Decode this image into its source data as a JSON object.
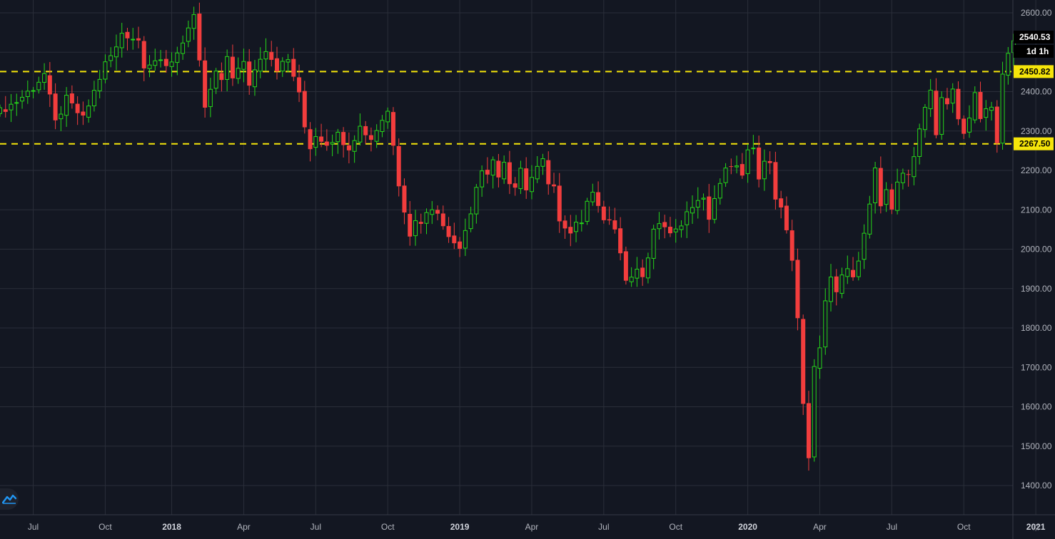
{
  "chart_data": {
    "type": "candlestick",
    "interval_label": "1d 1h",
    "last_price_label": "2540.53",
    "y_axis": {
      "range": [
        1325,
        2640
      ],
      "ticks": [
        "2600.00",
        "2500.00",
        "2400.00",
        "2300.00",
        "2200.00",
        "2100.00",
        "2000.00",
        "1900.00",
        "1800.00",
        "1700.00",
        "1600.00",
        "1500.00",
        "1400.00"
      ]
    },
    "x_axis": {
      "labels": [
        {
          "text": "Jul",
          "week": 6,
          "bold": false
        },
        {
          "text": "Oct",
          "week": 19,
          "bold": false
        },
        {
          "text": "2018",
          "week": 31,
          "bold": true
        },
        {
          "text": "Apr",
          "week": 44,
          "bold": false
        },
        {
          "text": "Jul",
          "week": 57,
          "bold": false
        },
        {
          "text": "Oct",
          "week": 70,
          "bold": false
        },
        {
          "text": "2019",
          "week": 83,
          "bold": true
        },
        {
          "text": "Apr",
          "week": 96,
          "bold": false
        },
        {
          "text": "Jul",
          "week": 109,
          "bold": false
        },
        {
          "text": "Oct",
          "week": 122,
          "bold": false
        },
        {
          "text": "2020",
          "week": 135,
          "bold": true
        },
        {
          "text": "Apr",
          "week": 148,
          "bold": false
        },
        {
          "text": "Jul",
          "week": 161,
          "bold": false
        },
        {
          "text": "Oct",
          "week": 174,
          "bold": false
        },
        {
          "text": "2021",
          "week": 187,
          "bold": true
        }
      ]
    },
    "levels": [
      {
        "value": 2450.82,
        "label": "2450.82"
      },
      {
        "value": 2267.5,
        "label": "2267.50"
      }
    ],
    "colors": {
      "up": "#26d61a",
      "down": "#f23d3d",
      "level": "#f5e50a",
      "grid": "#2a2e39",
      "axis": "#363a45"
    },
    "anchors": [
      [
        0,
        2350
      ],
      [
        3,
        2375
      ],
      [
        6,
        2410
      ],
      [
        8,
        2445
      ],
      [
        10,
        2320
      ],
      [
        12,
        2380
      ],
      [
        15,
        2330
      ],
      [
        17,
        2400
      ],
      [
        19,
        2470
      ],
      [
        21,
        2510
      ],
      [
        22,
        2550
      ],
      [
        25,
        2530
      ],
      [
        26,
        2470
      ],
      [
        28,
        2480
      ],
      [
        30,
        2460
      ],
      [
        32,
        2500
      ],
      [
        34,
        2560
      ],
      [
        35,
        2585
      ],
      [
        36,
        2470
      ],
      [
        37,
        2360
      ],
      [
        38,
        2400
      ],
      [
        39,
        2450
      ],
      [
        40,
        2420
      ],
      [
        41,
        2490
      ],
      [
        42,
        2440
      ],
      [
        44,
        2470
      ],
      [
        45,
        2420
      ],
      [
        47,
        2490
      ],
      [
        48,
        2510
      ],
      [
        50,
        2460
      ],
      [
        52,
        2480
      ],
      [
        53,
        2440
      ],
      [
        54,
        2390
      ],
      [
        55,
        2310
      ],
      [
        56,
        2260
      ],
      [
        57,
        2290
      ],
      [
        58,
        2280
      ],
      [
        59,
        2270
      ],
      [
        61,
        2290
      ],
      [
        63,
        2260
      ],
      [
        65,
        2310
      ],
      [
        67,
        2280
      ],
      [
        69,
        2330
      ],
      [
        70,
        2350
      ],
      [
        71,
        2270
      ],
      [
        72,
        2170
      ],
      [
        73,
        2100
      ],
      [
        74,
        2030
      ],
      [
        75,
        2080
      ],
      [
        76,
        2060
      ],
      [
        77,
        2100
      ],
      [
        78,
        2110
      ],
      [
        80,
        2060
      ],
      [
        82,
        2020
      ],
      [
        83,
        2010
      ],
      [
        85,
        2090
      ],
      [
        86,
        2160
      ],
      [
        87,
        2200
      ],
      [
        88,
        2180
      ],
      [
        89,
        2220
      ],
      [
        90,
        2190
      ],
      [
        91,
        2220
      ],
      [
        92,
        2160
      ],
      [
        93,
        2150
      ],
      [
        94,
        2200
      ],
      [
        95,
        2140
      ],
      [
        96,
        2190
      ],
      [
        97,
        2220
      ],
      [
        98,
        2230
      ],
      [
        99,
        2170
      ],
      [
        100,
        2150
      ],
      [
        101,
        2080
      ],
      [
        103,
        2040
      ],
      [
        104,
        2060
      ],
      [
        105,
        2070
      ],
      [
        106,
        2120
      ],
      [
        107,
        2140
      ],
      [
        108,
        2100
      ],
      [
        109,
        2080
      ],
      [
        110,
        2070
      ],
      [
        111,
        2060
      ],
      [
        112,
        2000
      ],
      [
        113,
        1920
      ],
      [
        114,
        1930
      ],
      [
        115,
        1950
      ],
      [
        116,
        1920
      ],
      [
        117,
        1980
      ],
      [
        118,
        2040
      ],
      [
        119,
        2070
      ],
      [
        120,
        2050
      ],
      [
        121,
        2030
      ],
      [
        122,
        2060
      ],
      [
        123,
        2070
      ],
      [
        124,
        2090
      ],
      [
        125,
        2110
      ],
      [
        126,
        2130
      ],
      [
        127,
        2120
      ],
      [
        128,
        2080
      ],
      [
        129,
        2130
      ],
      [
        130,
        2160
      ],
      [
        131,
        2200
      ],
      [
        132,
        2220
      ],
      [
        133,
        2210
      ],
      [
        134,
        2180
      ],
      [
        135,
        2260
      ],
      [
        136,
        2250
      ],
      [
        137,
        2170
      ],
      [
        138,
        2230
      ],
      [
        139,
        2220
      ],
      [
        140,
        2120
      ],
      [
        141,
        2100
      ],
      [
        142,
        2040
      ],
      [
        143,
        1980
      ],
      [
        144,
        1820
      ],
      [
        145,
        1600
      ],
      [
        146,
        1460
      ],
      [
        147,
        1700
      ],
      [
        148,
        1750
      ],
      [
        149,
        1860
      ],
      [
        150,
        1940
      ],
      [
        151,
        1900
      ],
      [
        152,
        1930
      ],
      [
        153,
        1950
      ],
      [
        154,
        1920
      ],
      [
        155,
        1960
      ],
      [
        156,
        2040
      ],
      [
        157,
        2120
      ],
      [
        158,
        2210
      ],
      [
        159,
        2100
      ],
      [
        160,
        2150
      ],
      [
        161,
        2110
      ],
      [
        162,
        2170
      ],
      [
        163,
        2200
      ],
      [
        164,
        2190
      ],
      [
        165,
        2230
      ],
      [
        166,
        2300
      ],
      [
        167,
        2360
      ],
      [
        168,
        2400
      ],
      [
        169,
        2300
      ],
      [
        170,
        2380
      ],
      [
        171,
        2360
      ],
      [
        172,
        2400
      ],
      [
        173,
        2330
      ],
      [
        174,
        2290
      ],
      [
        175,
        2340
      ],
      [
        176,
        2400
      ],
      [
        177,
        2320
      ],
      [
        178,
        2360
      ],
      [
        179,
        2350
      ],
      [
        180,
        2270
      ],
      [
        181,
        2440
      ],
      [
        182,
        2490
      ],
      [
        183,
        2540
      ]
    ]
  }
}
